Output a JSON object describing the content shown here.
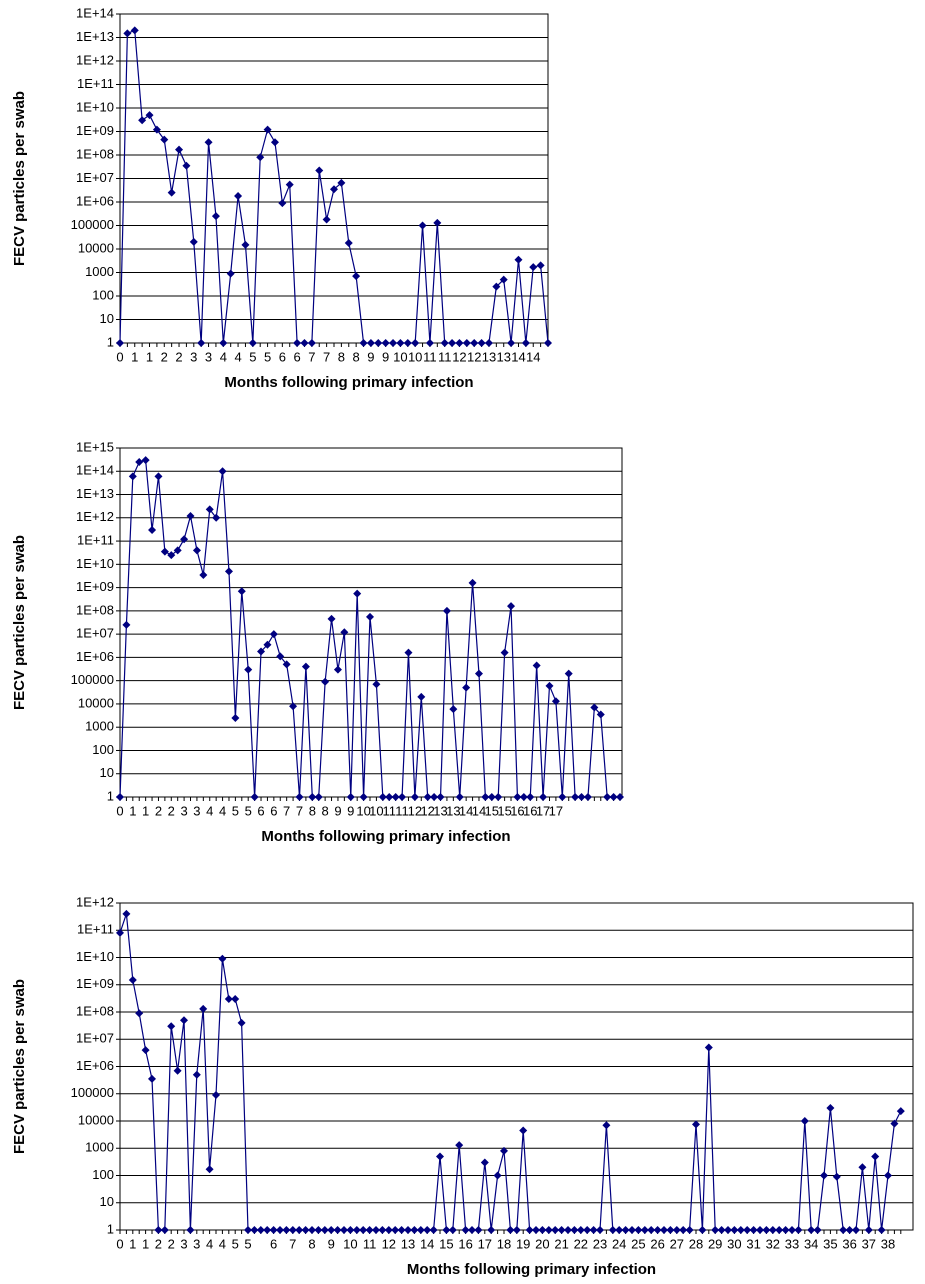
{
  "chart_data": [
    {
      "type": "line",
      "ylabel": "FECV particles per swab",
      "xlabel": "Months following primary infection",
      "color": "#000080",
      "log_y": true,
      "grid": true,
      "categories": [
        "0",
        null,
        "1",
        null,
        "1",
        null,
        "2",
        null,
        "2",
        null,
        "3",
        null,
        "3",
        null,
        "4",
        null,
        "4",
        null,
        "5",
        null,
        "5",
        null,
        "6",
        null,
        "6",
        null,
        "7",
        null,
        "7",
        null,
        "8",
        null,
        "8",
        null,
        "9",
        null,
        "9",
        null,
        "10",
        null,
        "10",
        null,
        "11",
        null,
        "11",
        null,
        "12",
        null,
        "12",
        null,
        "13",
        null,
        "13",
        null,
        "14",
        null,
        "14",
        null,
        null
      ],
      "values": [
        1,
        15000000000000.0,
        20000000000000.0,
        3000000000.0,
        5000000000.0,
        1200000000.0,
        450000000.0,
        2500000.0,
        170000000.0,
        35000000.0,
        20000.0,
        1,
        350000000.0,
        250000.0,
        1,
        900,
        1800000.0,
        15000.0,
        1,
        80000000.0,
        1200000000.0,
        350000000.0,
        900000.0,
        5500000.0,
        1,
        1,
        1,
        22000000.0,
        180000.0,
        3500000.0,
        6500000.0,
        18000.0,
        700,
        1,
        1,
        1,
        1,
        1,
        1,
        1,
        1,
        100000.0,
        1,
        130000.0,
        1,
        1,
        1,
        1,
        1,
        1,
        1,
        250,
        500,
        1,
        3500,
        1,
        1700,
        2000,
        1
      ],
      "ylim": [
        1,
        100000000000000.0
      ],
      "yticks": [
        1,
        10,
        100,
        1000,
        10000,
        100000,
        {
          "value": 1000000.0,
          "label": "1E+06"
        },
        {
          "value": 10000000.0,
          "label": "1E+07"
        },
        {
          "value": 100000000.0,
          "label": "1E+08"
        },
        {
          "value": 1000000000.0,
          "label": "1E+09"
        },
        {
          "value": 10000000000.0,
          "label": "1E+10"
        },
        {
          "value": 100000000000.0,
          "label": "1E+11"
        },
        {
          "value": 1000000000000.0,
          "label": "1E+12"
        },
        {
          "value": 10000000000000.0,
          "label": "1E+13"
        },
        {
          "value": 100000000000000.0,
          "label": "1E+14"
        }
      ]
    },
    {
      "type": "line",
      "ylabel": "FECV particles per swab",
      "xlabel": "Months following primary infection",
      "color": "#000080",
      "log_y": true,
      "grid": true,
      "categories": [
        "0",
        null,
        "1",
        null,
        "1",
        null,
        "2",
        null,
        "2",
        null,
        "3",
        null,
        "3",
        null,
        "4",
        null,
        "4",
        null,
        "5",
        null,
        "5",
        null,
        "6",
        null,
        "6",
        null,
        "7",
        null,
        "7",
        null,
        "8",
        null,
        "8",
        null,
        "9",
        null,
        "9",
        null,
        "10",
        null,
        "10",
        null,
        "11",
        null,
        "11",
        null,
        "12",
        null,
        "12",
        null,
        "13",
        null,
        "13",
        null,
        "14",
        null,
        "14",
        null,
        "15",
        null,
        "15",
        null,
        "16",
        null,
        "16",
        null,
        "17",
        null,
        "17",
        null,
        null,
        null,
        null,
        null,
        null,
        null,
        null,
        null,
        null
      ],
      "values": [
        1,
        25000000.0,
        60000000000000.0,
        250000000000000.0,
        300000000000000.0,
        300000000000.0,
        60000000000000.0,
        35000000000.0,
        25000000000.0,
        40000000000.0,
        120000000000.0,
        1200000000000.0,
        40000000000.0,
        3500000000.0,
        2300000000000.0,
        1000000000000.0,
        100000000000000.0,
        5000000000.0,
        2500,
        700000000.0,
        300000.0,
        1,
        1800000.0,
        3500000.0,
        10000000.0,
        1100000.0,
        500000.0,
        8000,
        1,
        400000.0,
        1,
        1,
        90000.0,
        45000000.0,
        300000.0,
        12000000.0,
        1,
        550000000.0,
        1,
        55000000.0,
        70000.0,
        1,
        1,
        1,
        1,
        1600000.0,
        1,
        20000.0,
        1,
        1,
        1,
        100000000.0,
        6000,
        1,
        50000.0,
        1600000000.0,
        200000.0,
        1,
        1,
        1,
        1600000.0,
        160000000.0,
        1,
        1,
        1,
        450000.0,
        1,
        60000.0,
        13000.0,
        1,
        200000.0,
        1,
        1,
        1,
        7000,
        3500,
        1,
        1,
        1
      ],
      "ylim": [
        1,
        1000000000000000.0
      ],
      "yticks": [
        1,
        10,
        100,
        1000,
        10000,
        100000,
        {
          "value": 1000000.0,
          "label": "1E+06"
        },
        {
          "value": 10000000.0,
          "label": "1E+07"
        },
        {
          "value": 100000000.0,
          "label": "1E+08"
        },
        {
          "value": 1000000000.0,
          "label": "1E+09"
        },
        {
          "value": 10000000000.0,
          "label": "1E+10"
        },
        {
          "value": 100000000000.0,
          "label": "1E+11"
        },
        {
          "value": 1000000000000.0,
          "label": "1E+12"
        },
        {
          "value": 10000000000000.0,
          "label": "1E+13"
        },
        {
          "value": 100000000000000.0,
          "label": "1E+14"
        },
        {
          "value": 1000000000000000.0,
          "label": "1E+15"
        }
      ]
    },
    {
      "type": "line",
      "ylabel": "FECV particles per swab",
      "xlabel": "Months following primary infection",
      "color": "#000080",
      "log_y": true,
      "grid": true,
      "categories": [
        "0",
        null,
        "1",
        null,
        "1",
        null,
        "2",
        null,
        "2",
        null,
        "3",
        null,
        "3",
        null,
        "4",
        null,
        "4",
        null,
        "5",
        null,
        "5",
        null,
        null,
        null,
        "6",
        null,
        null,
        "7",
        null,
        null,
        "8",
        null,
        null,
        "9",
        null,
        null,
        "10",
        null,
        null,
        "11",
        null,
        null,
        "12",
        null,
        null,
        "13",
        null,
        null,
        "14",
        null,
        null,
        "15",
        null,
        null,
        "16",
        null,
        null,
        "17",
        null,
        null,
        "18",
        null,
        null,
        "19",
        null,
        null,
        "20",
        null,
        null,
        "21",
        null,
        null,
        "22",
        null,
        null,
        "23",
        null,
        null,
        "24",
        null,
        null,
        "25",
        null,
        null,
        "26",
        null,
        null,
        "27",
        null,
        null,
        "28",
        null,
        null,
        "29",
        null,
        null,
        "30",
        null,
        null,
        "31",
        null,
        null,
        "32",
        null,
        null,
        "33",
        null,
        null,
        "34",
        null,
        null,
        "35",
        null,
        null,
        "36",
        null,
        null,
        "37",
        null,
        null,
        "38",
        null,
        null
      ],
      "values": [
        80000000000.0,
        400000000000.0,
        1500000000.0,
        90000000.0,
        4000000.0,
        350000.0,
        1,
        1,
        30000000.0,
        700000.0,
        50000000.0,
        1,
        500000.0,
        130000000.0,
        170,
        90000.0,
        9000000000.0,
        300000000.0,
        300000000.0,
        40000000.0,
        1,
        1,
        1,
        1,
        1,
        1,
        1,
        1,
        1,
        1,
        1,
        1,
        1,
        1,
        1,
        1,
        1,
        1,
        1,
        1,
        1,
        1,
        1,
        1,
        1,
        1,
        1,
        1,
        1,
        1,
        500,
        1,
        1,
        1300,
        1,
        1,
        1,
        300,
        1,
        100,
        800,
        1,
        1,
        4500,
        1,
        1,
        1,
        1,
        1,
        1,
        1,
        1,
        1,
        1,
        1,
        1,
        7000,
        1,
        1,
        1,
        1,
        1,
        1,
        1,
        1,
        1,
        1,
        1,
        1,
        1,
        7500,
        1,
        5000000.0,
        1,
        1,
        1,
        1,
        1,
        1,
        1,
        1,
        1,
        1,
        1,
        1,
        1,
        1,
        10000.0,
        1,
        1,
        100,
        30000.0,
        90,
        1,
        1,
        1,
        200,
        1,
        500,
        1,
        100,
        8000,
        23000.0
      ],
      "ylim": [
        1,
        1000000000000.0
      ],
      "yticks": [
        1,
        10,
        100,
        1000,
        10000,
        100000,
        {
          "value": 1000000.0,
          "label": "1E+06"
        },
        {
          "value": 10000000.0,
          "label": "1E+07"
        },
        {
          "value": 100000000.0,
          "label": "1E+08"
        },
        {
          "value": 1000000000.0,
          "label": "1E+09"
        },
        {
          "value": 10000000000.0,
          "label": "1E+10"
        },
        {
          "value": 100000000000.0,
          "label": "1E+11"
        },
        {
          "value": 1000000000000.0,
          "label": "1E+12"
        }
      ]
    }
  ]
}
